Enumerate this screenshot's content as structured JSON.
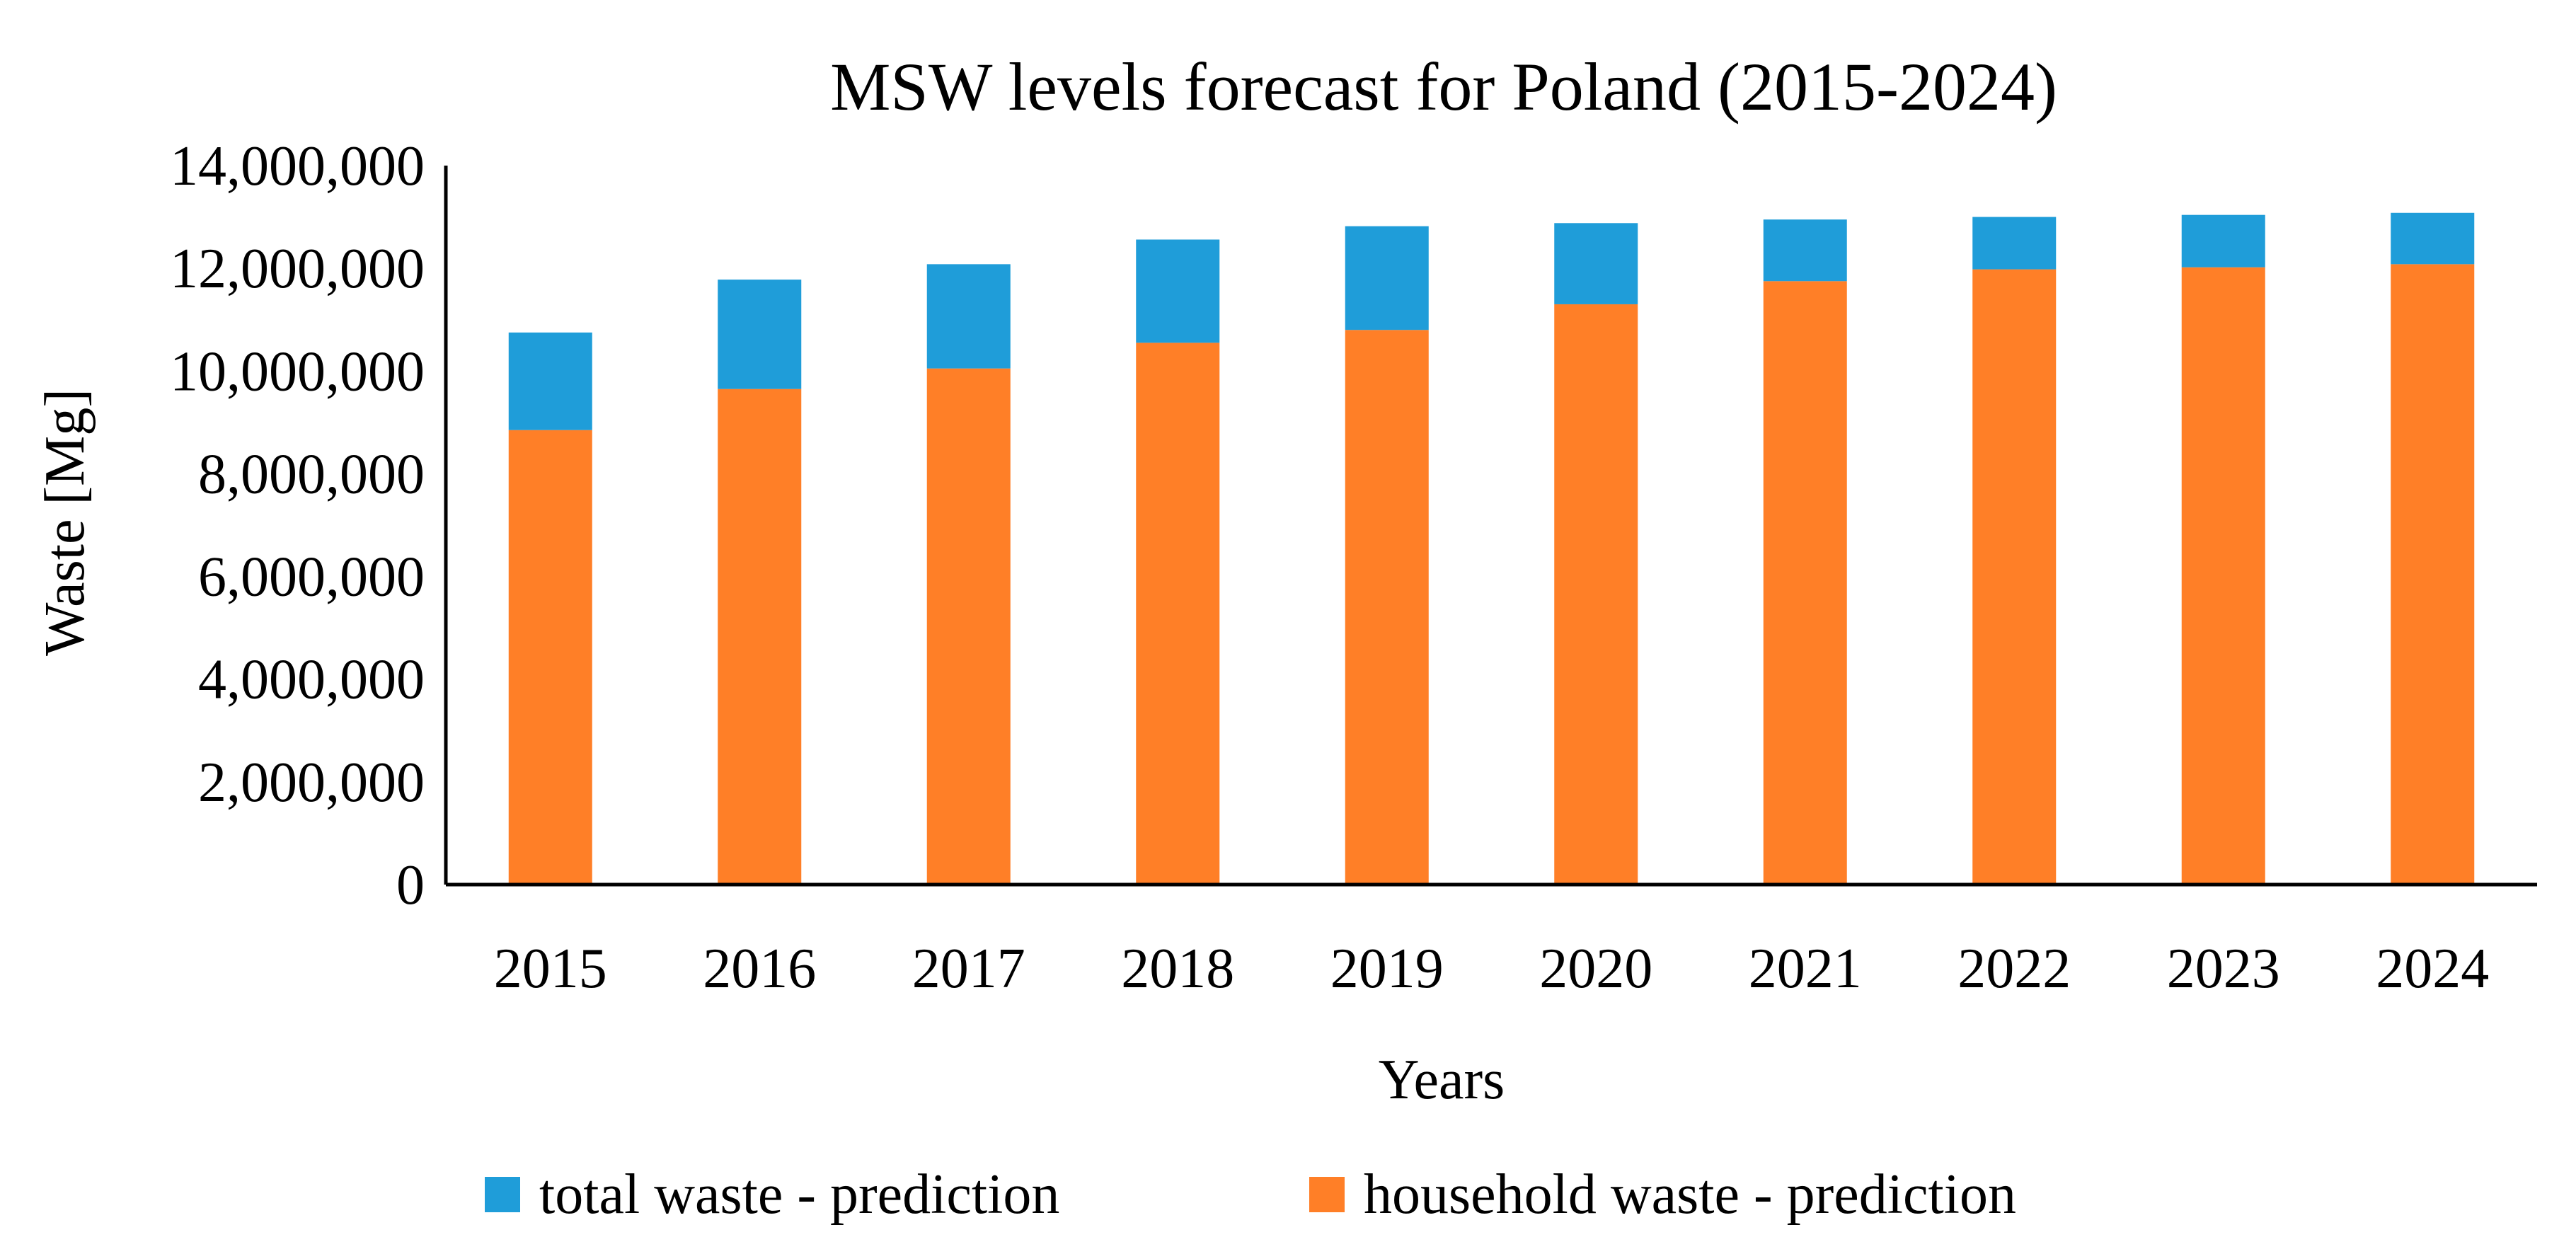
{
  "chart_data": {
    "type": "bar",
    "stacked": true,
    "title": "MSW levels forecast for Poland (2015-2024)",
    "xlabel": "Years",
    "ylabel": "Waste [Mg]",
    "categories": [
      "2015",
      "2016",
      "2017",
      "2018",
      "2019",
      "2020",
      "2021",
      "2022",
      "2023",
      "2024"
    ],
    "ylim": [
      0,
      14000000
    ],
    "yticks": [
      0,
      2000000,
      4000000,
      6000000,
      8000000,
      10000000,
      12000000,
      14000000
    ],
    "ytick_labels": [
      "0",
      "2,000,000",
      "4,000,000",
      "6,000,000",
      "8,000,000",
      "10,000,000",
      "12,000,000",
      "14,000,000"
    ],
    "grid": false,
    "legend_position": "bottom",
    "series": [
      {
        "name": "household waste - prediction",
        "color": "#FF7F27",
        "values": [
          8850000,
          9650000,
          10050000,
          10550000,
          10800000,
          11300000,
          11750000,
          11980000,
          12020000,
          12080000
        ]
      },
      {
        "name": "total waste - prediction",
        "color": "#1F9DD9",
        "total_values": [
          10750000,
          11780000,
          12080000,
          12560000,
          12820000,
          12880000,
          12950000,
          13000000,
          13040000,
          13080000
        ]
      }
    ],
    "legend": [
      {
        "label": "total waste - prediction",
        "color": "#1F9DD9"
      },
      {
        "label": "household waste - prediction",
        "color": "#FF7F27"
      }
    ]
  }
}
